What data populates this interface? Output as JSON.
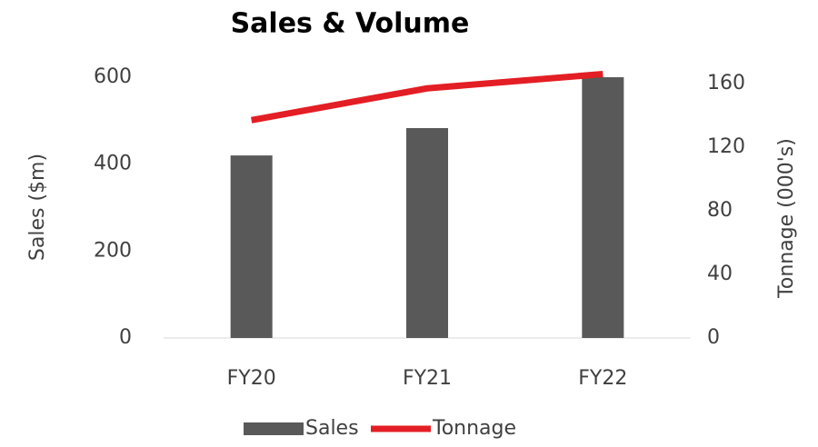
{
  "chart_data": {
    "type": "bar_line",
    "title": "Sales & Volume",
    "categories": [
      "FY20",
      "FY21",
      "FY22"
    ],
    "series": [
      {
        "name": "Sales",
        "type": "bar",
        "color": "#595959",
        "values": [
          420,
          483,
          600
        ]
      },
      {
        "name": "Tonnage",
        "type": "line",
        "color": "#e31e24",
        "axis": "y2",
        "values": [
          137,
          157,
          166
        ]
      }
    ],
    "ylabel": "Sales ($m)",
    "y2label": "Tonnage (000's)",
    "ylim": [
      0,
      600
    ],
    "yticks": [
      0,
      200,
      400,
      600
    ],
    "y2lim": [
      0,
      164
    ],
    "y2ticks": [
      0,
      40,
      80,
      120,
      160
    ],
    "legend": "bottom"
  }
}
